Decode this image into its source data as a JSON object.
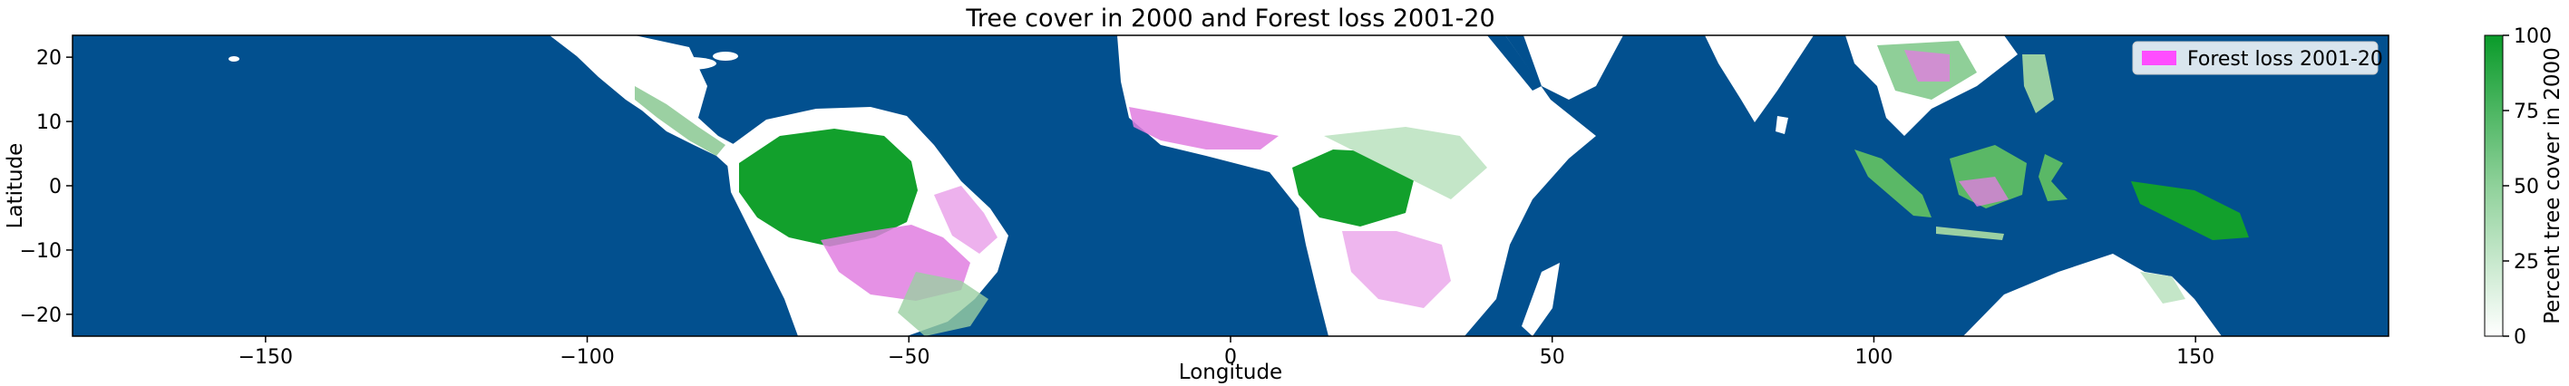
{
  "title": "Tree cover in 2000 and Forest loss 2001-20",
  "xlabel": "Longitude",
  "ylabel": "Latitude",
  "x_ticks": [
    "−150",
    "−100",
    "−50",
    "0",
    "50",
    "100",
    "150"
  ],
  "x_tick_values": [
    -150,
    -100,
    -50,
    0,
    50,
    100,
    150
  ],
  "y_ticks": [
    "20",
    "10",
    "0",
    "−10",
    "−20"
  ],
  "y_tick_values": [
    20,
    10,
    0,
    -10,
    -20
  ],
  "extent": {
    "lon": [
      -180,
      180
    ],
    "lat": [
      -23.4,
      23.4
    ]
  },
  "legend": {
    "label": "Forest loss 2001-20",
    "swatch_color": "#ff4dff",
    "placement": "top-right"
  },
  "colorbar": {
    "label": "Percent tree cover in 2000",
    "ticks": [
      "100",
      "75",
      "50",
      "25",
      "0"
    ],
    "tick_values": [
      100,
      75,
      50,
      25,
      0
    ],
    "color_min": "#ffffff",
    "color_max": "#0a9b2a"
  },
  "colors": {
    "ocean": "#02508f",
    "land": "#ffffff",
    "forest": "#12a02c",
    "loss": "#e07ee0"
  }
}
